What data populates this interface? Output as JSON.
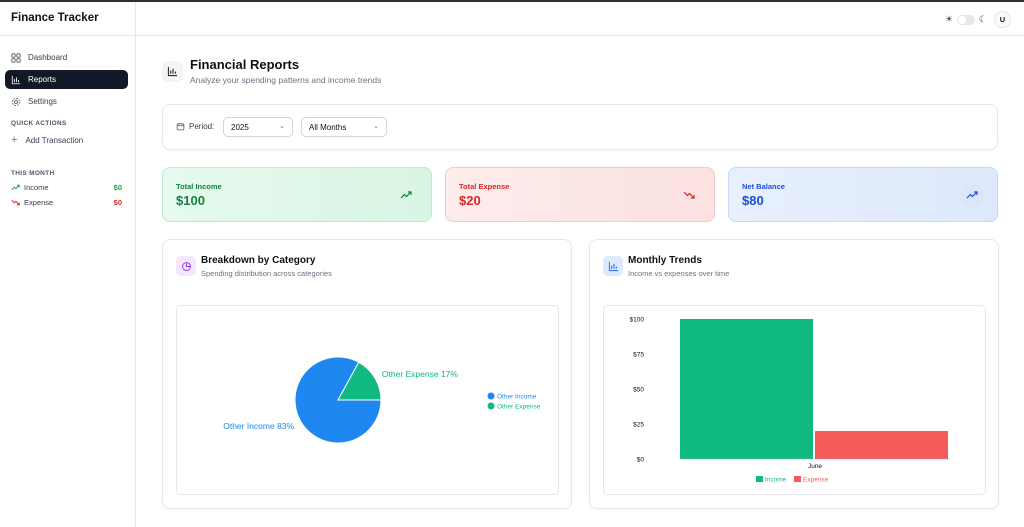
{
  "app": {
    "title": "Finance Tracker",
    "avatar": "U"
  },
  "sidebar": {
    "items": [
      {
        "label": "Dashboard",
        "icon": "grid-icon"
      },
      {
        "label": "Reports",
        "icon": "bar-chart-icon"
      },
      {
        "label": "Settings",
        "icon": "gear-icon"
      }
    ],
    "quick_actions_label": "QUICK ACTIONS",
    "add_transaction": "Add Transaction",
    "this_month_label": "THIS MONTH",
    "income_label": "Income",
    "income_value": "$0",
    "expense_label": "Expense",
    "expense_value": "$0"
  },
  "page": {
    "title": "Financial Reports",
    "subtitle": "Analyze your spending patterns and income trends"
  },
  "filters": {
    "period_label": "Period:",
    "year": "2025",
    "month": "All Months"
  },
  "stats": {
    "income_label": "Total Income",
    "income_value": "$100",
    "expense_label": "Total Expense",
    "expense_value": "$20",
    "net_label": "Net Balance",
    "net_value": "$80"
  },
  "breakdown": {
    "title": "Breakdown by Category",
    "subtitle": "Spending distribution across categories"
  },
  "trends": {
    "title": "Monthly Trends",
    "subtitle": "Income vs expenses over time"
  },
  "colors": {
    "income": "#10b981",
    "expense": "#f55b5b",
    "pie_income": "#1e88f0",
    "pie_expense": "#10b981"
  },
  "chart_data": [
    {
      "type": "pie",
      "labels": [
        "Other Income",
        "Other Expense"
      ],
      "values": [
        83,
        17
      ],
      "slice_labels": [
        "Other Income 83%",
        "Other Expense 17%"
      ],
      "colors": [
        "#1e88f0",
        "#10b981"
      ],
      "legend": [
        "Other Income",
        "Other Expense"
      ],
      "legend_position": "right"
    },
    {
      "type": "bar",
      "categories": [
        "June"
      ],
      "series": [
        {
          "name": "Income",
          "values": [
            100
          ],
          "color": "#10b981"
        },
        {
          "name": "Expense",
          "values": [
            20
          ],
          "color": "#f55b5b"
        }
      ],
      "yticks": [
        "$0",
        "$25",
        "$50",
        "$75",
        "$100"
      ],
      "ylim": [
        0,
        100
      ],
      "legend_position": "bottom"
    }
  ]
}
